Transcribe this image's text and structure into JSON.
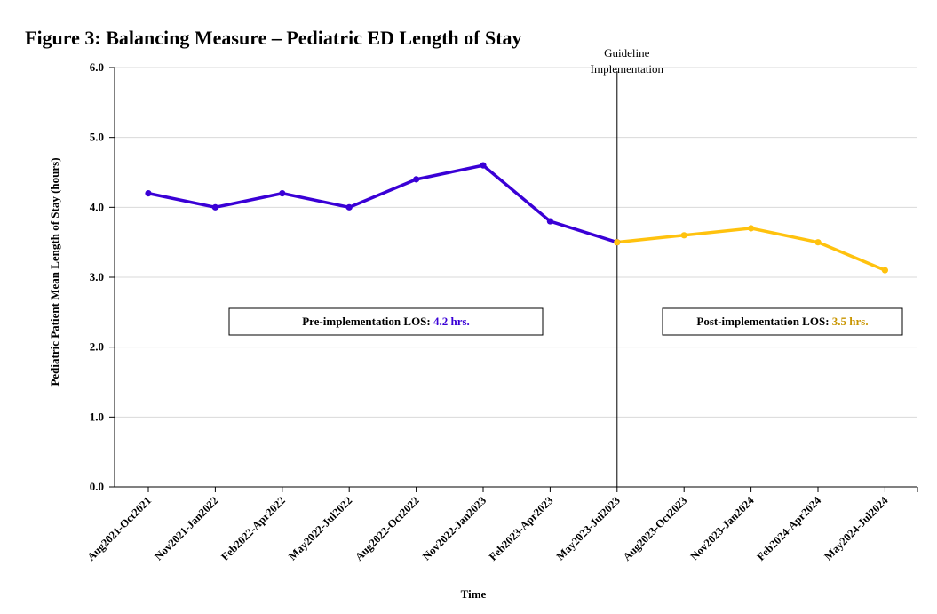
{
  "figure_title": "Figure 3: Balancing Measure – Pediatric ED Length of Stay",
  "colors": {
    "pre": "#3a00d6",
    "post": "#ffc20e",
    "post_text": "#c99500",
    "grid": "#d9d9d9",
    "axis": "#000000"
  },
  "chart_data": {
    "type": "line",
    "title": "Figure 3: Balancing Measure – Pediatric ED Length of Stay",
    "xlabel": "Time",
    "ylabel": "Pediatric Patient Mean Length of Stay (hours)",
    "ylim": [
      0,
      6
    ],
    "yticks": [
      "0.0",
      "1.0",
      "2.0",
      "3.0",
      "4.0",
      "5.0",
      "6.0"
    ],
    "grid": "horizontal",
    "categories": [
      "Aug2021-Oct2021",
      "Nov2021-Jan2022",
      "Feb2022-Apr2022",
      "May2022-Jul2022",
      "Aug2022-Oct2022",
      "Nov2022-Jan2023",
      "Feb2023-Apr2023",
      "May2023-Jul2023",
      "Aug2023-Oct2023",
      "Nov2023-Jan2024",
      "Feb2024-Apr2024",
      "May2024-Jul2024"
    ],
    "series": [
      {
        "key": "pre",
        "values": [
          4.2,
          4.0,
          4.2,
          4.0,
          4.4,
          4.6,
          3.8,
          3.5,
          null,
          null,
          null,
          null
        ]
      },
      {
        "key": "post",
        "values": [
          null,
          null,
          null,
          null,
          null,
          null,
          null,
          3.5,
          3.6,
          3.7,
          3.5,
          3.1
        ]
      }
    ],
    "annotations": {
      "vline_category_index": 7,
      "vline_label_line1": "Guideline",
      "vline_label_line2": "Implementation",
      "pre_box": {
        "label": "Pre-implementation LOS: ",
        "value": "4.2 hrs."
      },
      "post_box": {
        "label": "Post-implementation LOS: ",
        "value": "3.5 hrs."
      }
    }
  }
}
